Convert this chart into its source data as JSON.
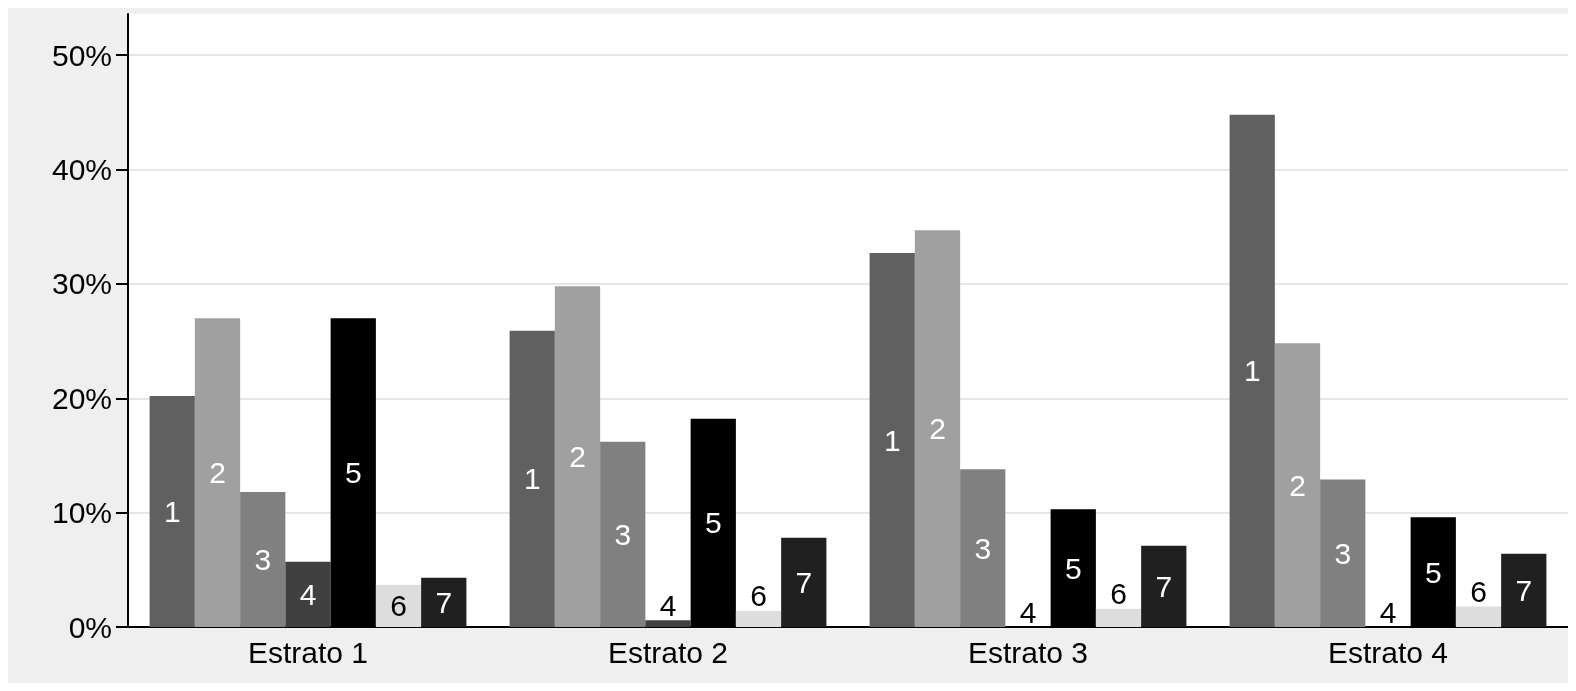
{
  "chart_data": {
    "type": "bar",
    "categories": [
      "Estrato 1",
      "Estrato 2",
      "Estrato 3",
      "Estrato 4"
    ],
    "series": [
      {
        "name": "1",
        "color": "#606060",
        "values": [
          20.2,
          25.9,
          32.7,
          44.8
        ]
      },
      {
        "name": "2",
        "color": "#a0a0a0",
        "values": [
          27.0,
          29.8,
          34.7,
          24.8
        ]
      },
      {
        "name": "3",
        "color": "#808080",
        "values": [
          11.8,
          16.2,
          13.8,
          12.9
        ]
      },
      {
        "name": "4",
        "color": "#404040",
        "values": [
          5.7,
          0.6,
          0,
          0
        ]
      },
      {
        "name": "5",
        "color": "#000000",
        "values": [
          27.0,
          18.2,
          10.3,
          9.6
        ]
      },
      {
        "name": "6",
        "color": "#dddddd",
        "values": [
          3.7,
          1.4,
          1.6,
          1.8
        ]
      },
      {
        "name": "7",
        "color": "#202020",
        "values": [
          4.3,
          7.8,
          7.1,
          6.4
        ]
      }
    ],
    "ylim": [
      0,
      53.6
    ],
    "yticks": [
      {
        "value": 0,
        "label": "0%"
      },
      {
        "value": 10,
        "label": "10%"
      },
      {
        "value": 20,
        "label": "20%"
      },
      {
        "value": 30,
        "label": "30%"
      },
      {
        "value": 40,
        "label": "40%"
      },
      {
        "value": 50,
        "label": "50%"
      }
    ],
    "grid": "y",
    "legend": false
  }
}
